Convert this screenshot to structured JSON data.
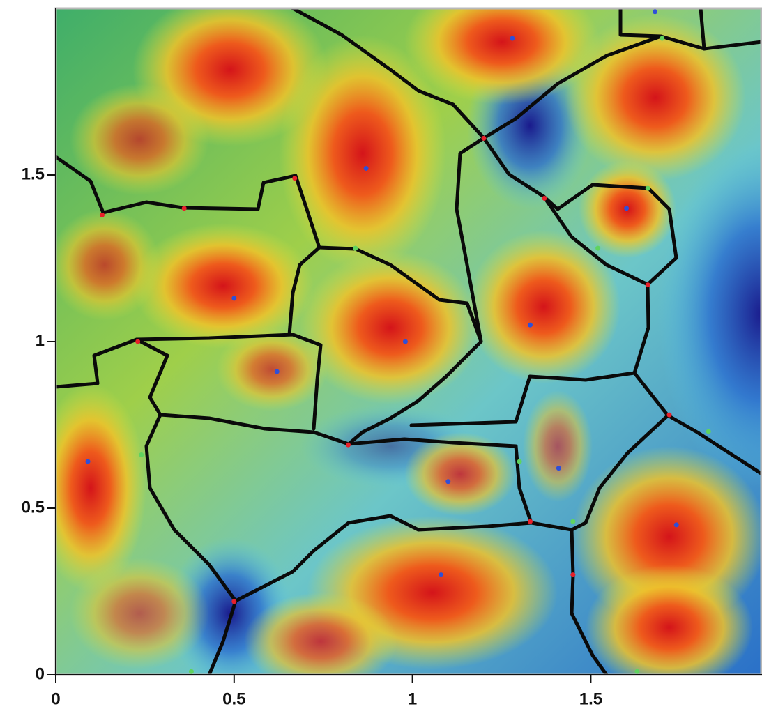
{
  "chart_data": {
    "type": "scatter",
    "xlim": [
      0,
      1.98
    ],
    "ylim": [
      0,
      2.0
    ],
    "xticks": [
      0,
      0.5,
      1,
      1.5
    ],
    "yticks": [
      0,
      0.5,
      1,
      1.5
    ],
    "series": [
      {
        "color": "#2f4fd8",
        "x": [
          0.87,
          1.28,
          1.68,
          1.6,
          0.5,
          0.98,
          1.33,
          0.62,
          0.09,
          1.1,
          1.41,
          1.74,
          1.08
        ],
        "values": [
          1.52,
          1.91,
          1.99,
          1.4,
          1.13,
          1.0,
          1.05,
          0.91,
          0.64,
          0.58,
          0.62,
          0.45,
          0.3
        ]
      },
      {
        "color": "#e8202a",
        "x": [
          0.13,
          0.36,
          0.67,
          1.2,
          1.37,
          1.66,
          0.23,
          0.82,
          1.72,
          1.33,
          1.45,
          0.5
        ],
        "values": [
          1.38,
          1.4,
          1.49,
          1.61,
          1.43,
          1.17,
          1.0,
          0.69,
          0.78,
          0.46,
          0.3,
          0.22
        ]
      },
      {
        "color": "#5fd35f",
        "x": [
          1.66,
          1.7,
          0.84,
          1.52,
          1.83,
          0.24,
          0.38,
          1.63,
          1.3,
          1.45
        ],
        "values": [
          1.46,
          1.91,
          1.28,
          1.28,
          0.73,
          0.66,
          0.01,
          0.01,
          0.64,
          0.46
        ]
      }
    ]
  }
}
